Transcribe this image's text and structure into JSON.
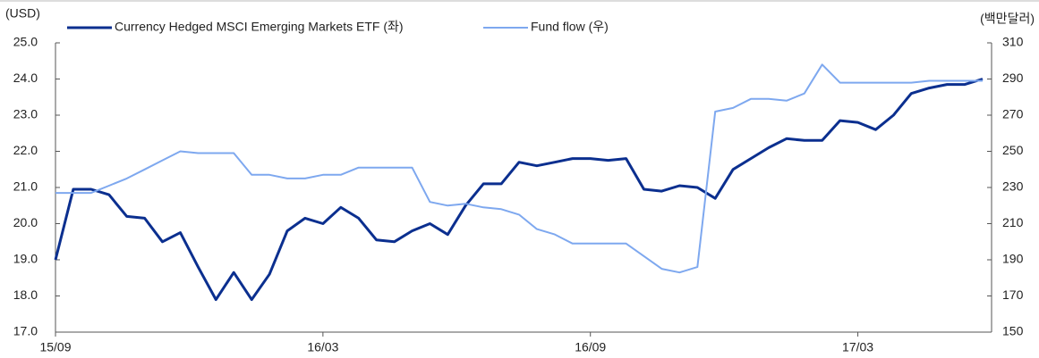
{
  "chart_data": {
    "type": "line",
    "y_label": "(USD)",
    "y2_label": "(백만달러)",
    "xlim": [
      0,
      21
    ],
    "xticks": [
      {
        "value": 0,
        "label": "15/09"
      },
      {
        "value": 6,
        "label": "16/03"
      },
      {
        "value": 12,
        "label": "16/09"
      },
      {
        "value": 18,
        "label": "17/03"
      }
    ],
    "ylim": [
      17,
      25
    ],
    "yticks": [
      {
        "value": 17,
        "label": "17.0"
      },
      {
        "value": 18,
        "label": "18.0"
      },
      {
        "value": 19,
        "label": "19.0"
      },
      {
        "value": 20,
        "label": "20.0"
      },
      {
        "value": 21,
        "label": "21.0"
      },
      {
        "value": 22,
        "label": "22.0"
      },
      {
        "value": 23,
        "label": "23.0"
      },
      {
        "value": 24,
        "label": "24.0"
      },
      {
        "value": 25,
        "label": "25.0"
      }
    ],
    "y2lim": [
      150,
      310
    ],
    "y2ticks": [
      150,
      170,
      190,
      210,
      230,
      250,
      270,
      290,
      310
    ],
    "grid": false,
    "legend": "top",
    "x": [
      0,
      0.4,
      0.8,
      1.2,
      1.6,
      2,
      2.4,
      2.8,
      3.2,
      3.6,
      4,
      4.4,
      4.8,
      5.2,
      5.6,
      6,
      6.4,
      6.8,
      7.2,
      7.6,
      8,
      8.4,
      8.8,
      9.2,
      9.6,
      10,
      10.4,
      10.8,
      11.2,
      11.6,
      12,
      12.4,
      12.8,
      13.2,
      13.6,
      14,
      14.4,
      14.8,
      15.2,
      15.6,
      16,
      16.4,
      16.8,
      17.2,
      17.6,
      18,
      18.4,
      18.8,
      19.2,
      19.6,
      20,
      20.4,
      20.8
    ],
    "series": [
      {
        "name": "Currency Hedged MSCI Emerging Markets ETF (좌)",
        "color": "#0b2f8f",
        "values": [
          19.0,
          20.95,
          20.95,
          20.8,
          20.2,
          20.15,
          19.5,
          19.75,
          18.8,
          17.9,
          18.65,
          17.9,
          18.6,
          19.8,
          20.15,
          20.0,
          20.45,
          20.15,
          19.55,
          19.5,
          19.8,
          20.0,
          19.7,
          20.5,
          21.1,
          21.1,
          21.7,
          21.6,
          21.7,
          21.8,
          21.8,
          21.75,
          21.8,
          20.95,
          20.9,
          21.05,
          21.0,
          20.7,
          21.5,
          21.8,
          22.1,
          22.35,
          22.3,
          22.3,
          22.85,
          22.8,
          22.6,
          23.0,
          23.6,
          23.75,
          23.85,
          23.85,
          24.0
        ]
      },
      {
        "name": "Fund flow (우)",
        "color": "#7ea8ef",
        "axis": "y2",
        "values": [
          227,
          227,
          227,
          231,
          235,
          240,
          245,
          250,
          249,
          249,
          249,
          237,
          237,
          235,
          235,
          237,
          237,
          241,
          241,
          241,
          241,
          222,
          220,
          221,
          219,
          218,
          215,
          207,
          204,
          199,
          199,
          199,
          199,
          192,
          185,
          183,
          186,
          272,
          274,
          279,
          279,
          278,
          282,
          298,
          288,
          288,
          288,
          288,
          288,
          289,
          289,
          289,
          289
        ]
      }
    ]
  }
}
